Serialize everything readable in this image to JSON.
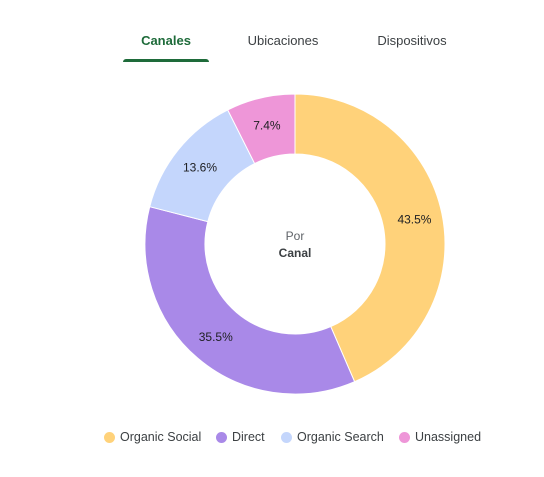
{
  "tabs": [
    {
      "label": "Canales",
      "active": true
    },
    {
      "label": "Ubicaciones",
      "active": false
    },
    {
      "label": "Dispositivos",
      "active": false
    }
  ],
  "center": {
    "line1": "Por",
    "line2": "Canal"
  },
  "chart_data": {
    "type": "pie",
    "donut": true,
    "legend_position": "bottom",
    "slices": [
      {
        "name": "Organic Social",
        "value": 43.5,
        "label": "43.5%",
        "color": "#ffd27a"
      },
      {
        "name": "Direct",
        "value": 35.5,
        "label": "35.5%",
        "color": "#a989e8"
      },
      {
        "name": "Organic Search",
        "value": 13.6,
        "label": "13.6%",
        "color": "#c4d6fc"
      },
      {
        "name": "Unassigned",
        "value": 7.4,
        "label": "7.4%",
        "color": "#ee96d8"
      }
    ]
  }
}
